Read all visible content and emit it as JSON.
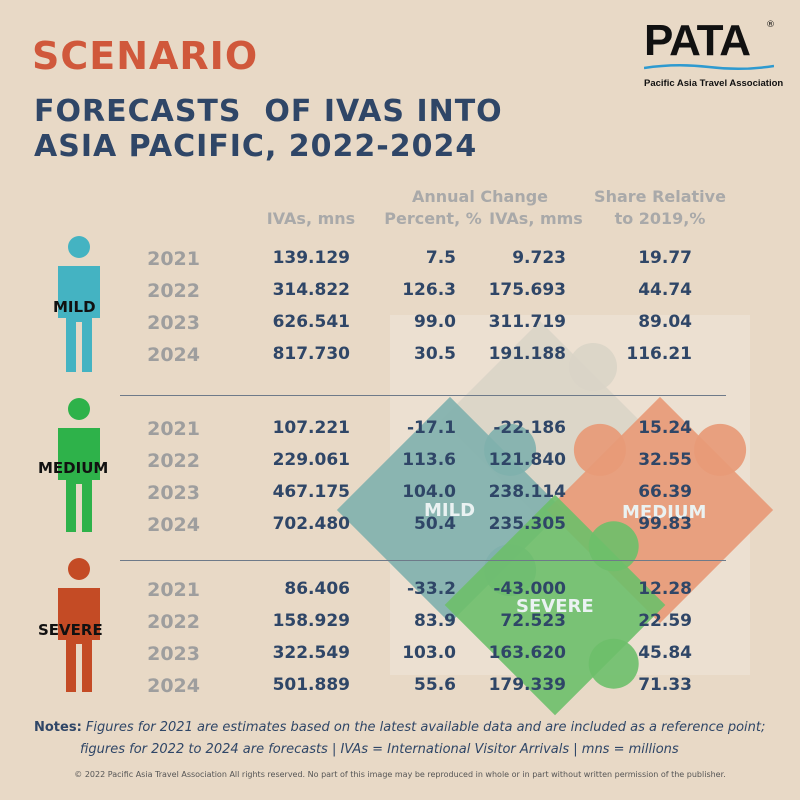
{
  "header": {
    "scenario": "SCENARIO",
    "title_line1": "FORECASTS  OF IVAS INTO",
    "title_line2": "ASIA PACIFIC, 2022-2024"
  },
  "logo": {
    "wordmark": "PATA",
    "registered": "®",
    "subtitle": "Pacific Asia Travel Association"
  },
  "columns": {
    "ivas": "IVAs, mns",
    "annual_change": "Annual Change",
    "percent": "Percent, %",
    "ivas_change": "IVAs, mms",
    "share_line1": "Share Relative",
    "share_line2": "to 2019,%"
  },
  "scenarios": [
    {
      "name": "MILD",
      "color": "#44b3c2",
      "rows": [
        {
          "year": "2021",
          "ivas": "139.129",
          "percent": "7.5",
          "change": "9.723",
          "share": "19.77"
        },
        {
          "year": "2022",
          "ivas": "314.822",
          "percent": "126.3",
          "change": "175.693",
          "share": "44.74"
        },
        {
          "year": "2023",
          "ivas": "626.541",
          "percent": "99.0",
          "change": "311.719",
          "share": "89.04"
        },
        {
          "year": "2024",
          "ivas": "817.730",
          "percent": "30.5",
          "change": "191.188",
          "share": "116.21"
        }
      ]
    },
    {
      "name": "MEDIUM",
      "color": "#2eb24a",
      "rows": [
        {
          "year": "2021",
          "ivas": "107.221",
          "percent": "-17.1",
          "change": "-22.186",
          "share": "15.24"
        },
        {
          "year": "2022",
          "ivas": "229.061",
          "percent": "113.6",
          "change": "121.840",
          "share": "32.55"
        },
        {
          "year": "2023",
          "ivas": "467.175",
          "percent": "104.0",
          "change": "238.114",
          "share": "66.39"
        },
        {
          "year": "2024",
          "ivas": "702.480",
          "percent": "50.4",
          "change": "235.305",
          "share": "99.83"
        }
      ]
    },
    {
      "name": "SEVERE",
      "color": "#c44b25",
      "rows": [
        {
          "year": "2021",
          "ivas": "86.406",
          "percent": "-33.2",
          "change": "-43.000",
          "share": "12.28"
        },
        {
          "year": "2022",
          "ivas": "158.929",
          "percent": "83.9",
          "change": "72.523",
          "share": "22.59"
        },
        {
          "year": "2023",
          "ivas": "322.549",
          "percent": "103.0",
          "change": "163.620",
          "share": "45.84"
        },
        {
          "year": "2024",
          "ivas": "501.889",
          "percent": "55.6",
          "change": "179.339",
          "share": "71.33"
        }
      ]
    }
  ],
  "puzzle": {
    "mild": "MILD",
    "medium": "MEDIUM",
    "severe": "SEVERE"
  },
  "notes": {
    "label": "Notes:",
    "line1": " Figures for 2021 are estimates based on the latest available data and are included as a reference point;",
    "line2": "figures for 2022 to 2024 are forecasts | IVAs = International Visitor Arrivals | mns = millions"
  },
  "copyright": "© 2022 Pacific Asia Travel Association All rights reserved. No part of this image may be reproduced in whole or in part without written permission of the publisher."
}
